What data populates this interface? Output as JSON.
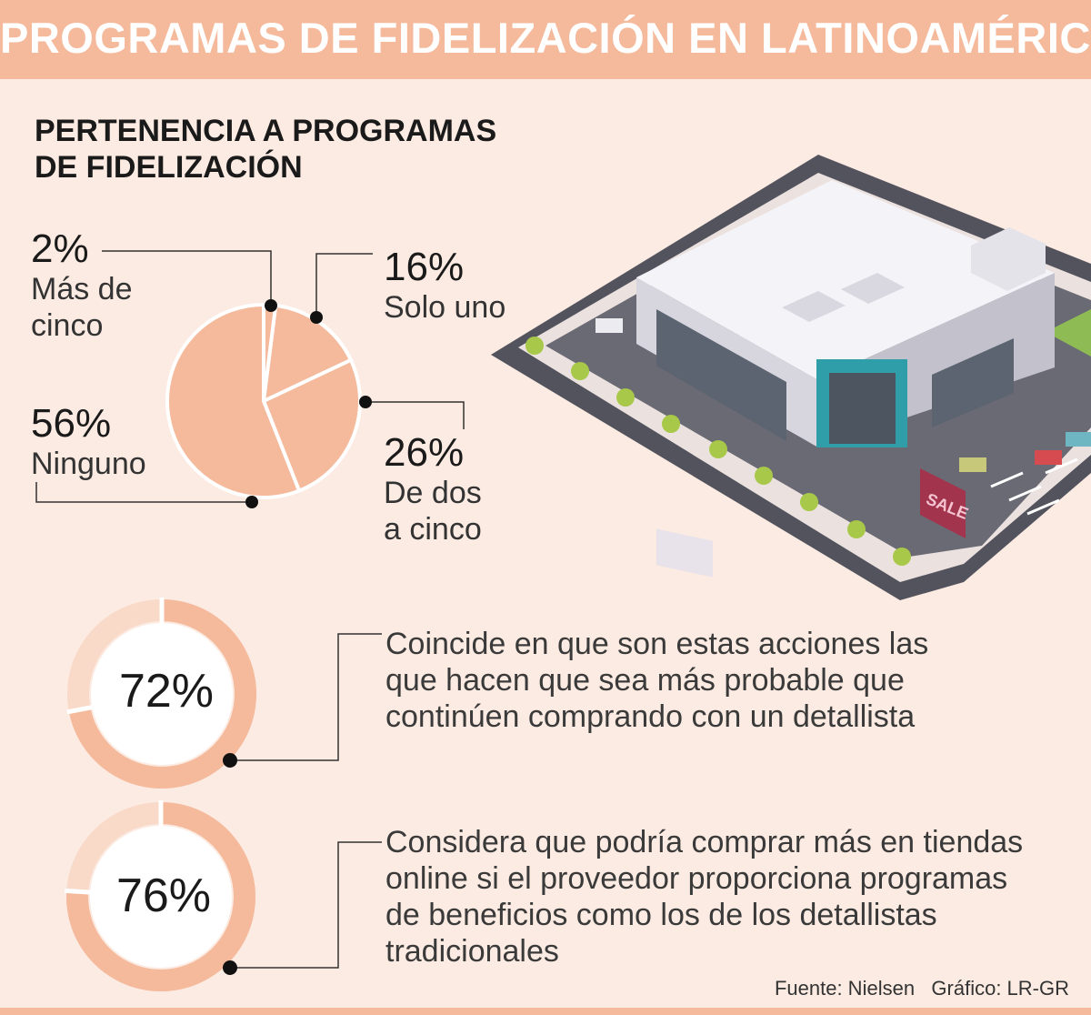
{
  "header": {
    "title": "PROGRAMAS DE FIDELIZACIÓN EN LATINOAMÉRICA"
  },
  "section": {
    "title_line1": "PERTENENCIA A PROGRAMAS",
    "title_line2": "DE FIDELIZACIÓN"
  },
  "colors": {
    "accent": "#f5b99b",
    "background": "#fcebe2",
    "ring_light": "#f9d9c8"
  },
  "chart_data": [
    {
      "type": "pie",
      "title": "PERTENENCIA A PROGRAMAS DE FIDELIZACIÓN",
      "slices": [
        {
          "pct": "2%",
          "value": 2,
          "label_line1": "Más de",
          "label_line2": "cinco"
        },
        {
          "pct": "16%",
          "value": 16,
          "label_line1": "Solo uno",
          "label_line2": ""
        },
        {
          "pct": "26%",
          "value": 26,
          "label_line1": "De dos",
          "label_line2": "a cinco"
        },
        {
          "pct": "56%",
          "value": 56,
          "label_line1": "Ninguno",
          "label_line2": ""
        }
      ]
    },
    {
      "type": "pie",
      "value": 72,
      "label": "72%",
      "desc_line1": "Coincide en que son estas acciones las",
      "desc_line2": "que hacen que sea más probable que",
      "desc_line3": "continúen comprando con un detallista"
    },
    {
      "type": "pie",
      "value": 76,
      "label": "76%",
      "desc_line1": "Considera que podría comprar más en tiendas",
      "desc_line2": "online si el proveedor proporciona programas",
      "desc_line3": "de beneficios como los de los detallistas",
      "desc_line4": "tradicionales"
    }
  ],
  "footer": {
    "source": "Fuente: Nielsen",
    "credit": "Gráfico: LR-GR"
  },
  "illustration": {
    "sign_text": "SALE"
  }
}
